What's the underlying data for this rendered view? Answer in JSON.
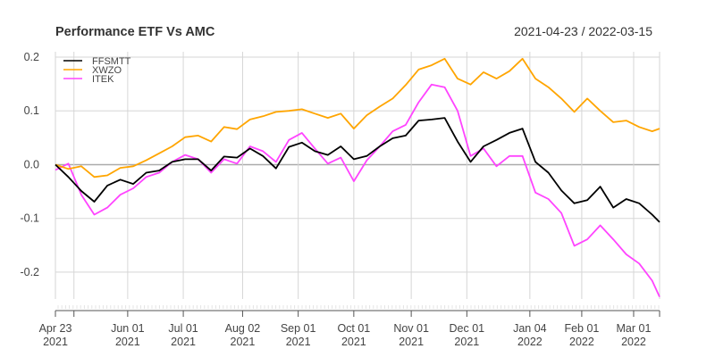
{
  "chart_data": {
    "type": "line",
    "title": "Performance ETF Vs AMC",
    "date_range": "2021-04-23 / 2022-03-15",
    "xlabel": "",
    "ylabel": "",
    "ylim": [
      -0.25,
      0.21
    ],
    "grid": true,
    "legend_position": "top-left",
    "y_ticks": [
      {
        "value": 0.2,
        "label": "0.2"
      },
      {
        "value": 0.1,
        "label": "0.1"
      },
      {
        "value": 0.0,
        "label": "0.0"
      },
      {
        "value": -0.1,
        "label": "-0.1"
      },
      {
        "value": -0.2,
        "label": "-0.2"
      }
    ],
    "x_ticks": [
      {
        "date": "2021-04-23",
        "label": "Apr 23",
        "year": "2021"
      },
      {
        "date": "2021-05-03",
        "label": "",
        "year": ""
      },
      {
        "date": "2021-06-01",
        "label": "Jun 01",
        "year": "2021"
      },
      {
        "date": "2021-07-01",
        "label": "Jul 01",
        "year": "2021"
      },
      {
        "date": "2021-08-02",
        "label": "Aug 02",
        "year": "2021"
      },
      {
        "date": "2021-09-01",
        "label": "Sep 01",
        "year": "2021"
      },
      {
        "date": "2021-10-01",
        "label": "Oct 01",
        "year": "2021"
      },
      {
        "date": "2021-11-01",
        "label": "Nov 01",
        "year": "2021"
      },
      {
        "date": "2021-12-01",
        "label": "Dec 01",
        "year": "2021"
      },
      {
        "date": "2022-01-04",
        "label": "Jan 04",
        "year": "2022"
      },
      {
        "date": "2022-02-01",
        "label": "Feb 01",
        "year": "2022"
      },
      {
        "date": "2022-03-01",
        "label": "Mar 01",
        "year": "2022"
      },
      {
        "date": "2022-03-15",
        "label": "",
        "year": ""
      }
    ],
    "x": [
      "2021-04-23",
      "2021-04-30",
      "2021-05-07",
      "2021-05-14",
      "2021-05-21",
      "2021-05-28",
      "2021-06-04",
      "2021-06-11",
      "2021-06-18",
      "2021-06-25",
      "2021-07-02",
      "2021-07-09",
      "2021-07-16",
      "2021-07-23",
      "2021-07-30",
      "2021-08-06",
      "2021-08-13",
      "2021-08-20",
      "2021-08-27",
      "2021-09-03",
      "2021-09-10",
      "2021-09-17",
      "2021-09-24",
      "2021-10-01",
      "2021-10-08",
      "2021-10-15",
      "2021-10-22",
      "2021-10-29",
      "2021-11-05",
      "2021-11-12",
      "2021-11-19",
      "2021-11-26",
      "2021-12-03",
      "2021-12-10",
      "2021-12-17",
      "2021-12-24",
      "2021-12-31",
      "2022-01-07",
      "2022-01-14",
      "2022-01-21",
      "2022-01-28",
      "2022-02-04",
      "2022-02-11",
      "2022-02-18",
      "2022-02-25",
      "2022-03-04",
      "2022-03-11",
      "2022-03-15"
    ],
    "series": [
      {
        "name": "FFSMTT",
        "color": "#000000",
        "values": [
          0.0,
          -0.023,
          -0.049,
          -0.069,
          -0.039,
          -0.028,
          -0.036,
          -0.015,
          -0.011,
          0.005,
          0.01,
          0.01,
          -0.011,
          0.015,
          0.013,
          0.03,
          0.016,
          -0.007,
          0.033,
          0.041,
          0.025,
          0.018,
          0.034,
          0.01,
          0.016,
          0.034,
          0.049,
          0.054,
          0.082,
          0.084,
          0.087,
          0.043,
          0.005,
          0.034,
          0.046,
          0.059,
          0.067,
          0.005,
          -0.015,
          -0.048,
          -0.072,
          -0.066,
          -0.041,
          -0.08,
          -0.064,
          -0.072,
          -0.093,
          -0.107
        ]
      },
      {
        "name": "XWZO",
        "color": "#FFA500",
        "values": [
          0.0,
          -0.008,
          -0.003,
          -0.023,
          -0.02,
          -0.006,
          -0.003,
          0.008,
          0.021,
          0.034,
          0.051,
          0.054,
          0.043,
          0.07,
          0.066,
          0.084,
          0.09,
          0.098,
          0.1,
          0.103,
          0.095,
          0.087,
          0.095,
          0.067,
          0.092,
          0.108,
          0.123,
          0.148,
          0.177,
          0.185,
          0.197,
          0.16,
          0.149,
          0.172,
          0.16,
          0.174,
          0.197,
          0.16,
          0.144,
          0.123,
          0.098,
          0.123,
          0.1,
          0.079,
          0.082,
          0.07,
          0.062,
          0.067
        ]
      },
      {
        "name": "ITEK",
        "color": "#FF44FF",
        "values": [
          -0.01,
          0.002,
          -0.056,
          -0.093,
          -0.08,
          -0.056,
          -0.044,
          -0.023,
          -0.015,
          0.005,
          0.018,
          0.01,
          -0.015,
          0.01,
          0.002,
          0.034,
          0.025,
          0.005,
          0.046,
          0.059,
          0.03,
          0.002,
          0.013,
          -0.031,
          0.008,
          0.034,
          0.062,
          0.074,
          0.116,
          0.149,
          0.144,
          0.1,
          0.016,
          0.03,
          -0.003,
          0.016,
          0.016,
          -0.052,
          -0.064,
          -0.09,
          -0.151,
          -0.139,
          -0.113,
          -0.139,
          -0.167,
          -0.184,
          -0.216,
          -0.246
        ]
      }
    ]
  }
}
